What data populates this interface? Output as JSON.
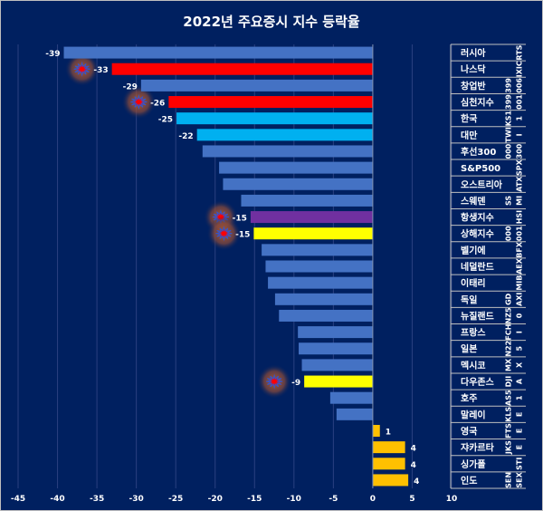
{
  "chart_data": {
    "type": "bar",
    "orientation": "horizontal",
    "title": "2022년 주요증시 지수 등락율",
    "xlim": [
      -45,
      10
    ],
    "xticks": [
      -45,
      -40,
      -35,
      -30,
      -25,
      -20,
      -15,
      -10,
      -5,
      0,
      5,
      10
    ],
    "grid": "vertical",
    "categories": [
      "러시아",
      "나스닥",
      "창업반",
      "심천지수",
      "한국",
      "대만",
      "후선300",
      "S&P500",
      "오스트리아",
      "스웨덴",
      "항생지수",
      "상해지수",
      "벨기에",
      "네덜란드",
      "이태리",
      "독일",
      "뉴질랜드",
      "프랑스",
      "일본",
      "멕시코",
      "다우존스",
      "호주",
      "말레이",
      "영국",
      "쟈카르타",
      "싱가폴",
      "인도"
    ],
    "tickers": [
      [
        "",
        "RTS"
      ],
      [
        "",
        "IXIC"
      ],
      [
        "399",
        "006"
      ],
      [
        "399",
        "001"
      ],
      [
        "KS1",
        "1"
      ],
      [
        "TWI",
        "I"
      ],
      [
        "000",
        "300"
      ],
      [
        "",
        "SPX"
      ],
      [
        "",
        "ATX"
      ],
      [
        "SS",
        "MI"
      ],
      [
        "",
        "HSI"
      ],
      [
        "000",
        "001"
      ],
      [
        "",
        "BFX"
      ],
      [
        "",
        "AEX"
      ],
      [
        "",
        "MIB"
      ],
      [
        "GD",
        "AXI"
      ],
      [
        "NZ5",
        "0"
      ],
      [
        "FCH",
        "I"
      ],
      [
        "N22",
        "5"
      ],
      [
        "MX",
        "X"
      ],
      [
        "DJI",
        "A"
      ],
      [
        "AS5",
        "1"
      ],
      [
        "KLS",
        "E"
      ],
      [
        "FTS",
        "E"
      ],
      [
        "JKS",
        "E"
      ],
      [
        "",
        "STI"
      ],
      [
        "SEN",
        "SEX"
      ]
    ],
    "values": [
      -39.2,
      -33.1,
      -29.4,
      -25.9,
      -24.9,
      -22.3,
      -21.6,
      -19.5,
      -19.0,
      -16.7,
      -15.5,
      -15.1,
      -14.1,
      -13.6,
      -13.3,
      -12.4,
      -11.9,
      -9.5,
      -9.4,
      -9.0,
      -8.7,
      -5.4,
      -4.6,
      0.9,
      4.1,
      4.1,
      4.5
    ],
    "data_labels": [
      "-39",
      "-33",
      "-29",
      "-26",
      "-25",
      "-22",
      "",
      "",
      "",
      "",
      "-15",
      "-15",
      "",
      "",
      "",
      "",
      "",
      "",
      "",
      "",
      "-9",
      "",
      "",
      "1",
      "4",
      "4",
      "4"
    ],
    "colors": [
      "#4472C4",
      "#FF0000",
      "#4472C4",
      "#FF0000",
      "#00B0F0",
      "#00B0F0",
      "#4472C4",
      "#4472C4",
      "#4472C4",
      "#4472C4",
      "#7030A0",
      "#FFFF00",
      "#4472C4",
      "#4472C4",
      "#4472C4",
      "#4472C4",
      "#4472C4",
      "#4472C4",
      "#4472C4",
      "#4472C4",
      "#FFFF00",
      "#4472C4",
      "#4472C4",
      "#FFC000",
      "#FFC000",
      "#FFC000",
      "#FFC000"
    ],
    "highlight_markers": [
      "나스닥",
      "심천지수",
      "항생지수",
      "상해지수",
      "다우존스"
    ],
    "background": "#002060"
  }
}
